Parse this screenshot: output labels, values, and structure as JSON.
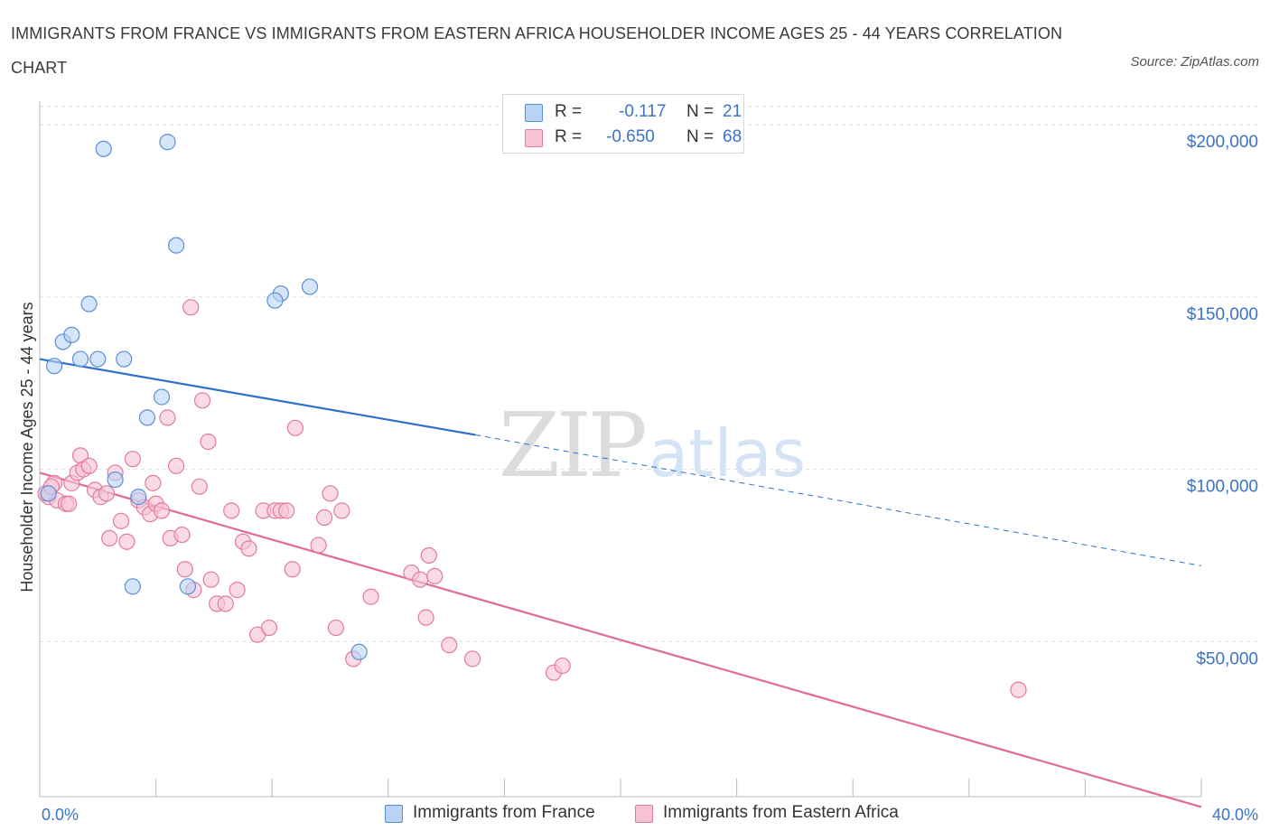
{
  "title": "IMMIGRANTS FROM FRANCE VS IMMIGRANTS FROM EASTERN AFRICA HOUSEHOLDER INCOME AGES 25 - 44 YEARS CORRELATION CHART",
  "source": "Source: ZipAtlas.com",
  "watermark": {
    "zip": "ZIP",
    "atlas": "atlas"
  },
  "legend": {
    "rows": [
      {
        "r_label": "R =",
        "r_value": "-0.117",
        "n_label": "N =",
        "n_value": "21"
      },
      {
        "r_label": "R =",
        "r_value": "-0.650",
        "n_label": "N =",
        "n_value": "68"
      }
    ]
  },
  "colors": {
    "france_fill": "#b9d3f7",
    "france_stroke": "#5b8fd6",
    "france_line": "#2e6fcc",
    "eafrica_fill": "#f7c3d3",
    "eafrica_stroke": "#e27aa0",
    "eafrica_line": "#e06b98",
    "grid": "#dddddd",
    "axis_label": "#3a73c9"
  },
  "chart_data": {
    "type": "scatter",
    "title": "IMMIGRANTS FROM FRANCE VS IMMIGRANTS FROM EASTERN AFRICA HOUSEHOLDER INCOME AGES 25 - 44 YEARS CORRELATION CHART",
    "xlabel": "",
    "ylabel": "Householder Income Ages 25 - 44 years",
    "xlim": [
      0,
      40
    ],
    "ylim": [
      5000,
      210000
    ],
    "x_tick_labels": [
      "0.0%",
      "40.0%"
    ],
    "y_ticks": [
      50000,
      100000,
      150000,
      200000
    ],
    "y_tick_labels": [
      "$50,000",
      "$100,000",
      "$150,000",
      "$200,000"
    ],
    "grid": true,
    "legend_position": "bottom",
    "series": [
      {
        "name": "Immigrants from France",
        "color": "#b9d3f7",
        "points": [
          [
            2.2,
            193000
          ],
          [
            4.4,
            195000
          ],
          [
            4.7,
            165000
          ],
          [
            1.7,
            148000
          ],
          [
            8.3,
            151000
          ],
          [
            9.3,
            153000
          ],
          [
            8.1,
            149000
          ],
          [
            0.8,
            137000
          ],
          [
            1.1,
            139000
          ],
          [
            0.5,
            130000
          ],
          [
            1.4,
            132000
          ],
          [
            2.0,
            132000
          ],
          [
            2.9,
            132000
          ],
          [
            4.2,
            121000
          ],
          [
            3.7,
            115000
          ],
          [
            2.6,
            97000
          ],
          [
            3.4,
            92000
          ],
          [
            0.3,
            93000
          ],
          [
            3.2,
            66000
          ],
          [
            5.1,
            66000
          ],
          [
            11.0,
            47000
          ]
        ],
        "trend": {
          "x": [
            0,
            15
          ],
          "y": [
            132000,
            110000
          ],
          "dashed_extension": {
            "x": [
              15,
              40
            ],
            "y": [
              110000,
              72000
            ]
          }
        }
      },
      {
        "name": "Immigrants from Eastern Africa",
        "color": "#f7c3d3",
        "points": [
          [
            0.3,
            92000
          ],
          [
            0.5,
            96000
          ],
          [
            0.6,
            91000
          ],
          [
            0.9,
            90000
          ],
          [
            1.0,
            90000
          ],
          [
            1.1,
            96000
          ],
          [
            1.3,
            99000
          ],
          [
            1.4,
            104000
          ],
          [
            1.5,
            100000
          ],
          [
            1.7,
            101000
          ],
          [
            1.9,
            94000
          ],
          [
            2.1,
            92000
          ],
          [
            2.3,
            93000
          ],
          [
            2.4,
            80000
          ],
          [
            2.6,
            99000
          ],
          [
            2.8,
            85000
          ],
          [
            3.0,
            79000
          ],
          [
            3.2,
            103000
          ],
          [
            3.4,
            91000
          ],
          [
            3.6,
            89000
          ],
          [
            3.8,
            87000
          ],
          [
            3.9,
            96000
          ],
          [
            4.0,
            90000
          ],
          [
            4.2,
            88000
          ],
          [
            4.4,
            115000
          ],
          [
            4.5,
            80000
          ],
          [
            4.7,
            101000
          ],
          [
            4.9,
            81000
          ],
          [
            5.0,
            71000
          ],
          [
            5.2,
            147000
          ],
          [
            5.3,
            65000
          ],
          [
            5.5,
            95000
          ],
          [
            5.6,
            120000
          ],
          [
            5.8,
            108000
          ],
          [
            5.9,
            68000
          ],
          [
            6.1,
            61000
          ],
          [
            6.4,
            61000
          ],
          [
            6.6,
            88000
          ],
          [
            6.8,
            65000
          ],
          [
            7.0,
            79000
          ],
          [
            7.2,
            77000
          ],
          [
            7.5,
            52000
          ],
          [
            7.7,
            88000
          ],
          [
            7.9,
            54000
          ],
          [
            8.1,
            88000
          ],
          [
            8.3,
            88000
          ],
          [
            8.5,
            88000
          ],
          [
            8.7,
            71000
          ],
          [
            8.8,
            112000
          ],
          [
            9.6,
            78000
          ],
          [
            9.8,
            86000
          ],
          [
            10.0,
            93000
          ],
          [
            10.2,
            54000
          ],
          [
            10.4,
            88000
          ],
          [
            10.8,
            45000
          ],
          [
            11.4,
            63000
          ],
          [
            12.8,
            70000
          ],
          [
            13.1,
            68000
          ],
          [
            13.3,
            57000
          ],
          [
            13.4,
            75000
          ],
          [
            13.6,
            69000
          ],
          [
            14.1,
            49000
          ],
          [
            14.9,
            45000
          ],
          [
            17.7,
            41000
          ],
          [
            18.0,
            43000
          ],
          [
            33.7,
            36000
          ],
          [
            0.2,
            93000
          ],
          [
            0.4,
            95000
          ]
        ],
        "trend": {
          "x": [
            0,
            40
          ],
          "y": [
            99000,
            2000
          ]
        }
      }
    ]
  }
}
